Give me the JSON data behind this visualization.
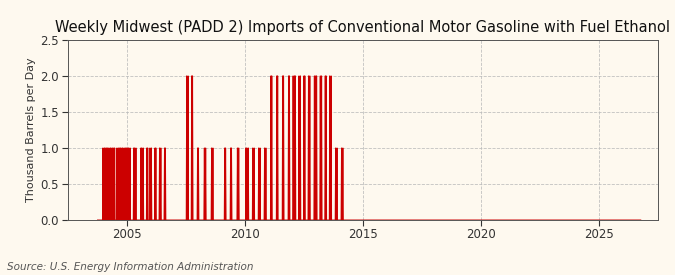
{
  "title": "Weekly Midwest (PADD 2) Imports of Conventional Motor Gasoline with Fuel Ethanol",
  "ylabel": "Thousand Barrels per Day",
  "source": "Source: U.S. Energy Information Administration",
  "background_color": "#fef9ef",
  "plot_bg_color": "#fef9ef",
  "line_color": "#cc0000",
  "grid_color": "#bbbbbb",
  "ylim": [
    0.0,
    2.5
  ],
  "yticks": [
    0.0,
    0.5,
    1.0,
    1.5,
    2.0,
    2.5
  ],
  "xlim_start": 2002.5,
  "xlim_end": 2027.5,
  "xticks": [
    2005,
    2010,
    2015,
    2020,
    2025
  ],
  "title_fontsize": 10.5,
  "ylabel_fontsize": 8,
  "tick_fontsize": 8.5,
  "source_fontsize": 7.5,
  "nonzero_x": [
    2004.0,
    2004.05,
    2004.1,
    2004.15,
    2004.2,
    2004.25,
    2004.3,
    2004.35,
    2004.4,
    2004.45,
    2004.5,
    2004.6,
    2004.65,
    2004.7,
    2004.75,
    2004.8,
    2004.85,
    2004.9,
    2004.95,
    2005.0,
    2005.05,
    2005.1,
    2005.15,
    2005.3,
    2005.35,
    2005.4,
    2005.6,
    2005.65,
    2005.7,
    2005.85,
    2005.9,
    2006.0,
    2006.05,
    2006.2,
    2006.25,
    2006.4,
    2006.45,
    2006.6,
    2006.65,
    2007.55,
    2007.6,
    2007.75,
    2007.8,
    2008.0,
    2008.05,
    2008.3,
    2008.35,
    2008.6,
    2008.65,
    2009.15,
    2009.2,
    2009.4,
    2009.45,
    2009.7,
    2009.75,
    2010.05,
    2010.1,
    2010.15,
    2010.35,
    2010.4,
    2010.6,
    2010.65,
    2010.85,
    2010.9,
    2011.1,
    2011.15,
    2011.35,
    2011.4,
    2011.6,
    2011.65,
    2011.85,
    2011.9,
    2012.05,
    2012.1,
    2012.15,
    2012.3,
    2012.35,
    2012.5,
    2012.55,
    2012.7,
    2012.75,
    2012.95,
    2013.0,
    2013.05,
    2013.2,
    2013.25,
    2013.4,
    2013.45,
    2013.6,
    2013.65,
    2013.85,
    2013.9,
    2014.1,
    2014.15
  ],
  "nonzero_y": [
    1.0,
    1.0,
    1.0,
    1.0,
    1.0,
    1.0,
    1.0,
    1.0,
    1.0,
    1.0,
    1.0,
    1.0,
    1.0,
    1.0,
    1.0,
    1.0,
    1.0,
    1.0,
    1.0,
    1.0,
    1.0,
    1.0,
    1.0,
    1.0,
    1.0,
    1.0,
    1.0,
    1.0,
    1.0,
    1.0,
    1.0,
    1.0,
    1.0,
    1.0,
    1.0,
    1.0,
    1.0,
    1.0,
    1.0,
    2.0,
    2.0,
    2.0,
    2.0,
    1.0,
    1.0,
    1.0,
    1.0,
    1.0,
    1.0,
    1.0,
    1.0,
    1.0,
    1.0,
    1.0,
    1.0,
    1.0,
    1.0,
    1.0,
    1.0,
    1.0,
    1.0,
    1.0,
    1.0,
    1.0,
    2.0,
    2.0,
    2.0,
    2.0,
    2.0,
    2.0,
    2.0,
    2.0,
    2.0,
    2.0,
    2.0,
    2.0,
    2.0,
    2.0,
    2.0,
    2.0,
    2.0,
    2.0,
    2.0,
    2.0,
    2.0,
    2.0,
    2.0,
    2.0,
    2.0,
    2.0,
    1.0,
    1.0,
    1.0,
    1.0
  ]
}
